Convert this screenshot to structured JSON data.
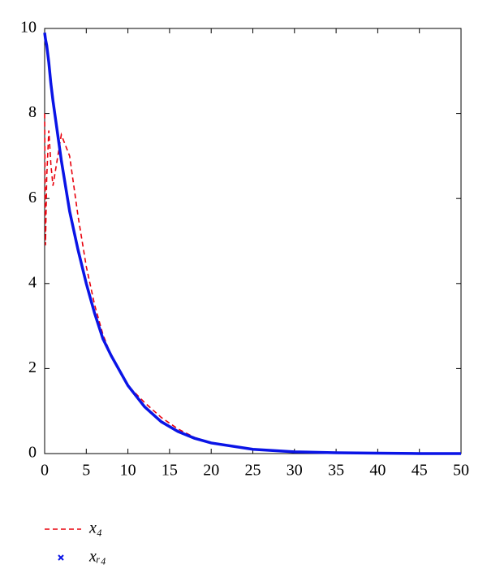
{
  "chart_data": {
    "type": "line",
    "x": [
      0,
      0.1,
      0.25,
      0.5,
      0.75,
      1,
      1.5,
      2,
      3,
      4,
      5,
      6,
      7,
      8,
      10,
      12,
      14,
      16,
      18,
      20,
      25,
      30,
      35,
      40,
      45,
      50
    ],
    "series": [
      {
        "name": "x₄",
        "color": "#e8000b",
        "style": "dashed",
        "values": [
          8.0,
          4.9,
          6.5,
          7.6,
          6.8,
          6.3,
          6.9,
          7.5,
          7.0,
          5.6,
          4.4,
          3.5,
          2.8,
          2.3,
          1.6,
          1.2,
          0.85,
          0.58,
          0.38,
          0.25,
          0.1,
          0.04,
          0.02,
          0.01,
          0,
          0
        ]
      },
      {
        "name": "xᵣ₄",
        "color": "#0a14e6",
        "style": "solid",
        "values": [
          9.9,
          9.75,
          9.6,
          9.2,
          8.7,
          8.3,
          7.6,
          6.9,
          5.7,
          4.8,
          4.0,
          3.3,
          2.7,
          2.3,
          1.6,
          1.1,
          0.75,
          0.52,
          0.36,
          0.25,
          0.1,
          0.04,
          0.02,
          0.01,
          0,
          0
        ]
      }
    ],
    "xlim": [
      0,
      50
    ],
    "xticks": [
      0,
      5,
      10,
      15,
      20,
      25,
      30,
      35,
      40,
      45,
      50
    ],
    "ylim": [
      0,
      10
    ],
    "yticks": [
      0,
      2,
      4,
      6,
      8,
      10
    ],
    "grid": false
  }
}
